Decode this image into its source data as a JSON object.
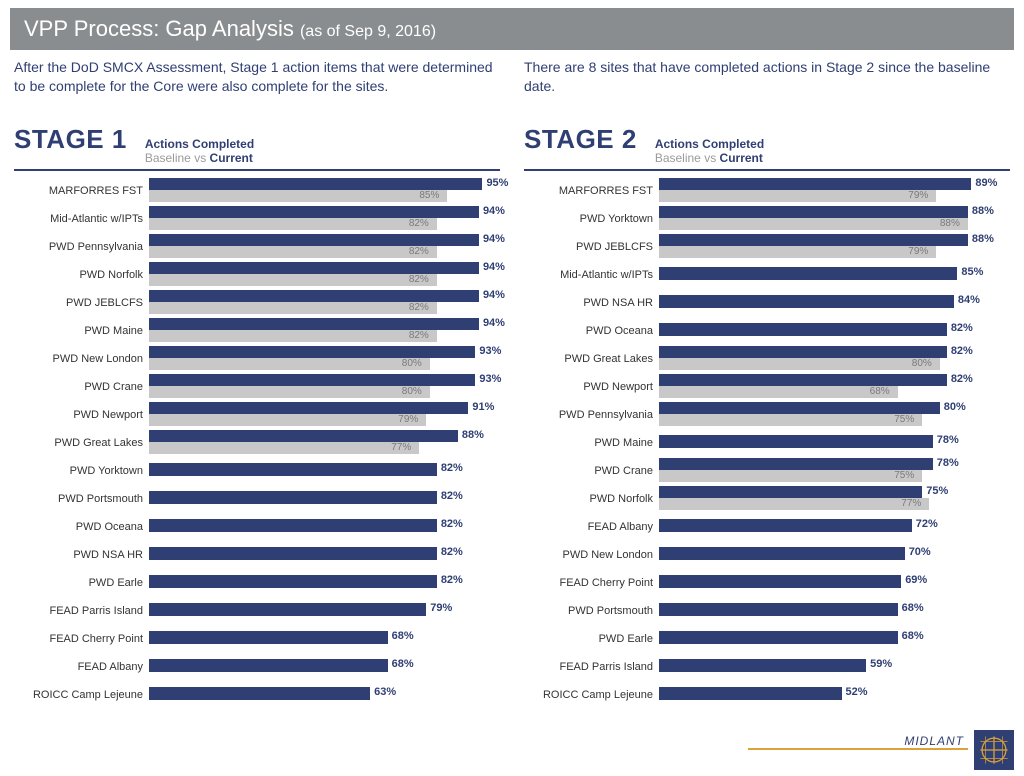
{
  "header": {
    "title_main": "VPP Process:  Gap Analysis",
    "title_sub": "(as of Sep 9, 2016)"
  },
  "colors": {
    "primary": "#2f3f73",
    "baseline_bar": "#c8c8c8",
    "header_bg": "#8a8d8f",
    "accent": "#d9a23b",
    "background": "#ffffff"
  },
  "legend": {
    "line1": "Actions Completed",
    "baseline_label": "Baseline",
    "vs": " vs ",
    "current_label": "Current"
  },
  "footer": {
    "label": "MIDLANT"
  },
  "chart_style": {
    "bar_height_current": 12,
    "bar_height_baseline": 12,
    "xlim": [
      0,
      100
    ],
    "label_fontsize": 11,
    "value_fontsize": 11
  },
  "stage1": {
    "title": "STAGE 1",
    "intro": "After the DoD SMCX Assessment, Stage 1 action items that were determined to be complete for the Core were also complete for the sites.",
    "rows": [
      {
        "label": "MARFORRES FST",
        "current": 95,
        "baseline": 85
      },
      {
        "label": "Mid-Atlantic w/IPTs",
        "current": 94,
        "baseline": 82
      },
      {
        "label": "PWD Pennsylvania",
        "current": 94,
        "baseline": 82
      },
      {
        "label": "PWD Norfolk",
        "current": 94,
        "baseline": 82
      },
      {
        "label": "PWD JEBLCFS",
        "current": 94,
        "baseline": 82
      },
      {
        "label": "PWD Maine",
        "current": 94,
        "baseline": 82
      },
      {
        "label": "PWD New London",
        "current": 93,
        "baseline": 80
      },
      {
        "label": "PWD Crane",
        "current": 93,
        "baseline": 80
      },
      {
        "label": "PWD Newport",
        "current": 91,
        "baseline": 79
      },
      {
        "label": "PWD Great Lakes",
        "current": 88,
        "baseline": 77
      },
      {
        "label": "PWD Yorktown",
        "current": 82
      },
      {
        "label": "PWD Portsmouth",
        "current": 82
      },
      {
        "label": "PWD Oceana",
        "current": 82
      },
      {
        "label": "PWD NSA HR",
        "current": 82
      },
      {
        "label": "PWD Earle",
        "current": 82
      },
      {
        "label": "FEAD Parris Island",
        "current": 79
      },
      {
        "label": "FEAD Cherry Point",
        "current": 68
      },
      {
        "label": "FEAD Albany",
        "current": 68
      },
      {
        "label": "ROICC Camp Lejeune",
        "current": 63
      }
    ]
  },
  "stage2": {
    "title": "STAGE 2",
    "intro": "There are 8 sites that have completed actions in Stage 2 since the baseline date.",
    "rows": [
      {
        "label": "MARFORRES FST",
        "current": 89,
        "baseline": 79
      },
      {
        "label": "PWD Yorktown",
        "current": 88,
        "baseline": 88
      },
      {
        "label": "PWD JEBLCFS",
        "current": 88,
        "baseline": 79
      },
      {
        "label": "Mid-Atlantic w/IPTs",
        "current": 85
      },
      {
        "label": "PWD NSA HR",
        "current": 84
      },
      {
        "label": "PWD Oceana",
        "current": 82
      },
      {
        "label": "PWD Great Lakes",
        "current": 82,
        "baseline": 80
      },
      {
        "label": "PWD Newport",
        "current": 82,
        "baseline": 68
      },
      {
        "label": "PWD Pennsylvania",
        "current": 80,
        "baseline": 75
      },
      {
        "label": "PWD Maine",
        "current": 78
      },
      {
        "label": "PWD Crane",
        "current": 78,
        "baseline": 75
      },
      {
        "label": "PWD Norfolk",
        "current": 75,
        "baseline": 77
      },
      {
        "label": "FEAD Albany",
        "current": 72
      },
      {
        "label": "PWD New London",
        "current": 70
      },
      {
        "label": "FEAD Cherry Point",
        "current": 69
      },
      {
        "label": "PWD Portsmouth",
        "current": 68
      },
      {
        "label": "PWD Earle",
        "current": 68
      },
      {
        "label": "FEAD Parris Island",
        "current": 59
      },
      {
        "label": "ROICC Camp Lejeune",
        "current": 52
      }
    ]
  }
}
